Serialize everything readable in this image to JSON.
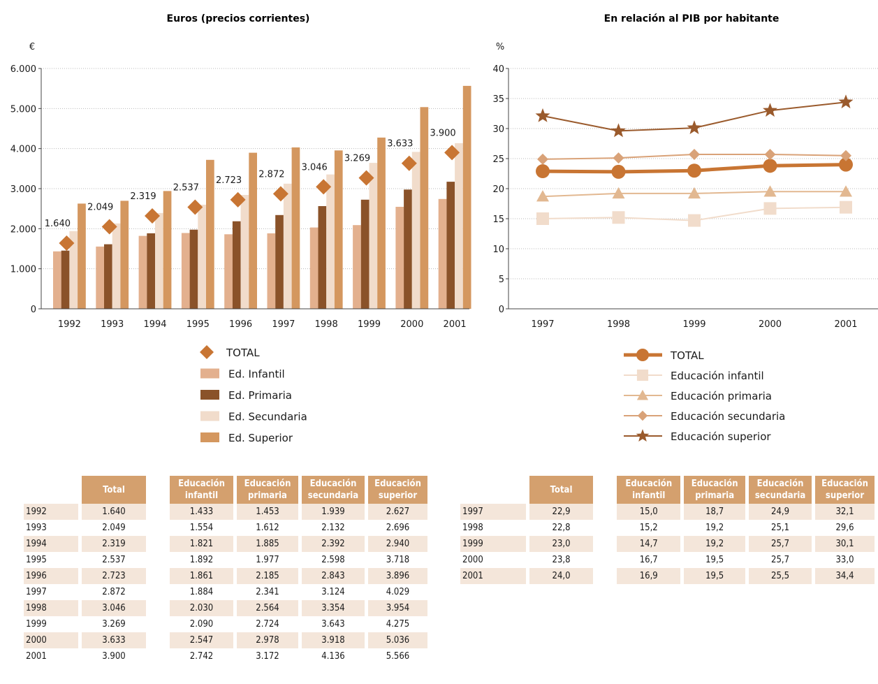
{
  "colors": {
    "infantil": "#e3b08e",
    "primaria": "#8a5229",
    "secundaria": "#f1dccb",
    "superior": "#d4975f",
    "total": "#c87533",
    "header": "#d4a06e",
    "row_alt": "#f4e6da",
    "star": "#9a5a2c",
    "line_inf": "#f1dccb",
    "line_prim": "#e2b891",
    "line_sec": "#d9a278"
  },
  "chart_data": [
    {
      "type": "bar",
      "title": "Euros (precios corrientes)",
      "ylabel": "€",
      "ylim": [
        0,
        6000
      ],
      "yticks": [
        "0",
        "1.000",
        "2.000",
        "3.000",
        "4.000",
        "5.000",
        "6.000"
      ],
      "grid": true,
      "categories": [
        "1992",
        "1993",
        "1994",
        "1995",
        "1996",
        "1997",
        "1998",
        "1999",
        "2000",
        "2001"
      ],
      "series": [
        {
          "name": "Ed. Infantil",
          "values": [
            1433,
            1554,
            1821,
            1892,
            1861,
            1884,
            2030,
            2090,
            2547,
            2742
          ]
        },
        {
          "name": "Ed. Primaria",
          "values": [
            1453,
            1612,
            1885,
            1977,
            2185,
            2341,
            2564,
            2724,
            2978,
            3172
          ]
        },
        {
          "name": "Ed. Secundaria",
          "values": [
            1939,
            2132,
            2392,
            2598,
            2843,
            3124,
            3354,
            3643,
            3918,
            4136
          ]
        },
        {
          "name": "Ed. Superior",
          "values": [
            2627,
            2696,
            2940,
            3718,
            3896,
            4029,
            3954,
            4275,
            5036,
            5566
          ]
        }
      ],
      "total": {
        "name": "TOTAL",
        "values": [
          1640,
          2049,
          2319,
          2537,
          2723,
          2872,
          3046,
          3269,
          3633,
          3900
        ],
        "labels": [
          "1.640",
          "2.049",
          "2.319",
          "2.537",
          "2.723",
          "2.872",
          "3.046",
          "3.269",
          "3.633",
          "3.900"
        ]
      },
      "legend": [
        "TOTAL",
        "Ed. Infantil",
        "Ed. Primaria",
        "Ed. Secundaria",
        "Ed. Superior"
      ]
    },
    {
      "type": "line",
      "title": "En relación al PIB por habitante",
      "ylabel": "%",
      "ylim": [
        0,
        40
      ],
      "yticks": [
        "0",
        "5",
        "10",
        "15",
        "20",
        "25",
        "30",
        "35",
        "40"
      ],
      "grid": true,
      "x": [
        "1997",
        "1998",
        "1999",
        "2000",
        "2001"
      ],
      "series": [
        {
          "name": "TOTAL",
          "values": [
            22.9,
            22.8,
            23.0,
            23.8,
            24.0
          ]
        },
        {
          "name": "Educación infantil",
          "values": [
            15.0,
            15.2,
            14.7,
            16.7,
            16.9
          ]
        },
        {
          "name": "Educación primaria",
          "values": [
            18.7,
            19.2,
            19.2,
            19.5,
            19.5
          ]
        },
        {
          "name": "Educación secundaria",
          "values": [
            24.9,
            25.1,
            25.7,
            25.7,
            25.5
          ]
        },
        {
          "name": "Educación superior",
          "values": [
            32.1,
            29.6,
            30.1,
            33.0,
            34.4
          ]
        }
      ]
    }
  ],
  "table_euros": {
    "total_header": "Total",
    "headers": [
      "Educación\ninfantil",
      "Educación\nprimaria",
      "Educación\nsecundaria",
      "Educación\nsuperior"
    ],
    "rows": [
      {
        "year": "1992",
        "total": "1.640",
        "vals": [
          "1.433",
          "1.453",
          "1.939",
          "2.627"
        ]
      },
      {
        "year": "1993",
        "total": "2.049",
        "vals": [
          "1.554",
          "1.612",
          "2.132",
          "2.696"
        ]
      },
      {
        "year": "1994",
        "total": "2.319",
        "vals": [
          "1.821",
          "1.885",
          "2.392",
          "2.940"
        ]
      },
      {
        "year": "1995",
        "total": "2.537",
        "vals": [
          "1.892",
          "1.977",
          "2.598",
          "3.718"
        ]
      },
      {
        "year": "1996",
        "total": "2.723",
        "vals": [
          "1.861",
          "2.185",
          "2.843",
          "3.896"
        ]
      },
      {
        "year": "1997",
        "total": "2.872",
        "vals": [
          "1.884",
          "2.341",
          "3.124",
          "4.029"
        ]
      },
      {
        "year": "1998",
        "total": "3.046",
        "vals": [
          "2.030",
          "2.564",
          "3.354",
          "3.954"
        ]
      },
      {
        "year": "1999",
        "total": "3.269",
        "vals": [
          "2.090",
          "2.724",
          "3.643",
          "4.275"
        ]
      },
      {
        "year": "2000",
        "total": "3.633",
        "vals": [
          "2.547",
          "2.978",
          "3.918",
          "5.036"
        ]
      },
      {
        "year": "2001",
        "total": "3.900",
        "vals": [
          "2.742",
          "3.172",
          "4.136",
          "5.566"
        ]
      }
    ]
  },
  "table_pib": {
    "total_header": "Total",
    "headers": [
      "Educación\ninfantil",
      "Educación\nprimaria",
      "Educación\nsecundaria",
      "Educación\nsuperior"
    ],
    "rows": [
      {
        "year": "1997",
        "total": "22,9",
        "vals": [
          "15,0",
          "18,7",
          "24,9",
          "32,1"
        ]
      },
      {
        "year": "1998",
        "total": "22,8",
        "vals": [
          "15,2",
          "19,2",
          "25,1",
          "29,6"
        ]
      },
      {
        "year": "1999",
        "total": "23,0",
        "vals": [
          "14,7",
          "19,2",
          "25,7",
          "30,1"
        ]
      },
      {
        "year": "2000",
        "total": "23,8",
        "vals": [
          "16,7",
          "19,5",
          "25,7",
          "33,0"
        ]
      },
      {
        "year": "2001",
        "total": "24,0",
        "vals": [
          "16,9",
          "19,5",
          "25,5",
          "34,4"
        ]
      }
    ]
  }
}
